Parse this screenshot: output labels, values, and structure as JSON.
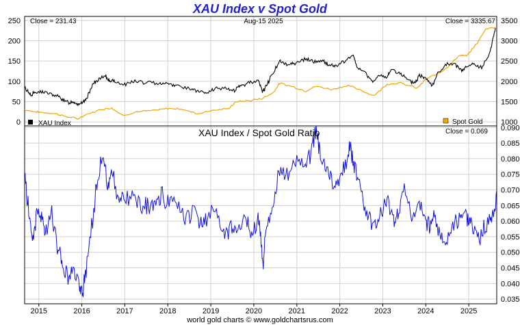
{
  "title": "XAU Index v Spot Gold",
  "footer": "world gold charts © www.goldchartsrus.com",
  "colors": {
    "xau": "#000000",
    "gold": "#f0a500",
    "ratio": "#1010e0",
    "title": "#1f1fd0"
  },
  "chart_data": [
    {
      "type": "line",
      "panel": "top",
      "title": "",
      "date_label": "Aug-15  2025",
      "close_left_label": "Close = 231.43",
      "close_right_label": "Close = 3335.67",
      "left_axis": {
        "ylim": [
          -10,
          260
        ],
        "ticks": [
          0,
          50,
          100,
          150,
          200,
          250
        ],
        "tick_labels": [
          "0",
          "50",
          "100",
          "150",
          "200",
          "250"
        ]
      },
      "right_axis": {
        "ylim": [
          900,
          3600
        ],
        "ticks": [
          1000,
          1500,
          2000,
          2500,
          3000,
          3500
        ],
        "tick_labels": [
          "1000",
          "1500",
          "2000",
          "2500",
          "3000",
          "3500"
        ]
      },
      "x_axis": {
        "xlim": [
          2014.67,
          2025.65
        ],
        "ticks": [
          2015,
          2016,
          2017,
          2018,
          2019,
          2020,
          2021,
          2022,
          2023,
          2024,
          2025
        ],
        "tick_labels": [
          "2015",
          "2016",
          "2017",
          "2018",
          "2019",
          "2020",
          "2021",
          "2022",
          "2023",
          "2024",
          "2025"
        ]
      },
      "grid": true,
      "legend": [
        {
          "name": "XAU Index",
          "position": "bottom-left"
        },
        {
          "name": "Spot Gold",
          "position": "bottom-right"
        }
      ],
      "series": [
        {
          "name": "XAU Index",
          "axis": "left",
          "x": [
            2014.67,
            2014.8,
            2014.95,
            2015.1,
            2015.3,
            2015.5,
            2015.65,
            2015.8,
            2015.9,
            2016.0,
            2016.1,
            2016.25,
            2016.4,
            2016.55,
            2016.65,
            2016.8,
            2017.0,
            2017.2,
            2017.5,
            2017.8,
            2018.0,
            2018.2,
            2018.5,
            2018.7,
            2018.9,
            2019.1,
            2019.4,
            2019.55,
            2019.7,
            2019.9,
            2020.1,
            2020.2,
            2020.25,
            2020.4,
            2020.6,
            2020.75,
            2020.9,
            2021.0,
            2021.2,
            2021.4,
            2021.6,
            2021.75,
            2021.9,
            2022.1,
            2022.3,
            2022.4,
            2022.6,
            2022.75,
            2022.9,
            2023.1,
            2023.2,
            2023.4,
            2023.6,
            2023.75,
            2023.85,
            2024.0,
            2024.15,
            2024.3,
            2024.5,
            2024.7,
            2024.85,
            2024.95,
            2025.1,
            2025.3,
            2025.5,
            2025.62
          ],
          "y": [
            85,
            68,
            72,
            75,
            67,
            60,
            48,
            50,
            45,
            45,
            55,
            92,
            105,
            112,
            102,
            98,
            92,
            100,
            96,
            96,
            95,
            90,
            82,
            75,
            70,
            82,
            80,
            78,
            88,
            98,
            102,
            76,
            80,
            112,
            150,
            140,
            145,
            145,
            155,
            148,
            150,
            140,
            138,
            148,
            165,
            135,
            120,
            100,
            112,
            110,
            130,
            120,
            100,
            96,
            114,
            110,
            90,
            123,
            142,
            140,
            125,
            135,
            142,
            132,
            175,
            231.43
          ]
        },
        {
          "name": "Spot Gold",
          "axis": "left-mapped-right",
          "x": [
            2014.67,
            2014.9,
            2015.1,
            2015.4,
            2015.6,
            2015.9,
            2016.1,
            2016.5,
            2016.7,
            2016.95,
            2017.3,
            2017.7,
            2018.0,
            2018.3,
            2018.7,
            2019.0,
            2019.4,
            2019.6,
            2019.9,
            2020.2,
            2020.45,
            2020.6,
            2020.9,
            2021.2,
            2021.45,
            2021.8,
            2022.2,
            2022.6,
            2022.8,
            2023.1,
            2023.4,
            2023.8,
            2024.0,
            2024.3,
            2024.5,
            2024.8,
            2024.95,
            2025.2,
            2025.4,
            2025.62
          ],
          "y": [
            1300,
            1250,
            1230,
            1200,
            1140,
            1070,
            1180,
            1320,
            1340,
            1160,
            1250,
            1280,
            1330,
            1320,
            1200,
            1280,
            1320,
            1500,
            1520,
            1580,
            1720,
            1950,
            1870,
            1760,
            1880,
            1800,
            1900,
            1720,
            1650,
            1930,
            1960,
            1830,
            2050,
            2200,
            2350,
            2650,
            2620,
            2950,
            3300,
            3335.67
          ]
        }
      ]
    },
    {
      "type": "line",
      "panel": "bottom",
      "title": "XAU Index  /  Spot Gold Ratio",
      "close_label": "Close = 0.069",
      "y_axis": {
        "ylim": [
          0.0335,
          0.0905
        ],
        "ticks": [
          0.035,
          0.04,
          0.045,
          0.05,
          0.055,
          0.06,
          0.065,
          0.07,
          0.075,
          0.08,
          0.085,
          0.09
        ],
        "tick_labels": [
          "0.035",
          "0.040",
          "0.045",
          "0.050",
          "0.055",
          "0.060",
          "0.065",
          "0.070",
          "0.075",
          "0.080",
          "0.085",
          "0.090"
        ]
      },
      "x_axis": {
        "xlim": [
          2014.67,
          2025.65
        ],
        "ticks": [
          2015,
          2016,
          2017,
          2018,
          2019,
          2020,
          2021,
          2022,
          2023,
          2024,
          2025
        ],
        "tick_labels": [
          "2015",
          "2016",
          "2017",
          "2018",
          "2019",
          "2020",
          "2021",
          "2022",
          "2023",
          "2024",
          "2025"
        ]
      },
      "grid": true,
      "series": [
        {
          "name": "XAU Index / Spot Gold Ratio",
          "x": [
            2014.67,
            2014.75,
            2014.85,
            2014.95,
            2015.05,
            2015.15,
            2015.3,
            2015.45,
            2015.55,
            2015.7,
            2015.8,
            2015.95,
            2016.02,
            2016.1,
            2016.25,
            2016.35,
            2016.5,
            2016.6,
            2016.7,
            2016.85,
            2017.0,
            2017.2,
            2017.4,
            2017.55,
            2017.7,
            2017.85,
            2018.0,
            2018.2,
            2018.4,
            2018.6,
            2018.75,
            2018.9,
            2019.1,
            2019.3,
            2019.45,
            2019.6,
            2019.8,
            2019.95,
            2020.1,
            2020.17,
            2020.22,
            2020.3,
            2020.45,
            2020.6,
            2020.8,
            2021.0,
            2021.2,
            2021.35,
            2021.45,
            2021.55,
            2021.7,
            2021.85,
            2022.0,
            2022.15,
            2022.25,
            2022.35,
            2022.5,
            2022.65,
            2022.8,
            2022.95,
            2023.1,
            2023.25,
            2023.35,
            2023.5,
            2023.7,
            2023.85,
            2024.0,
            2024.1,
            2024.2,
            2024.35,
            2024.5,
            2024.65,
            2024.8,
            2024.95,
            2025.05,
            2025.2,
            2025.35,
            2025.5,
            2025.6,
            2025.65
          ],
          "y": [
            0.075,
            0.065,
            0.054,
            0.063,
            0.063,
            0.055,
            0.062,
            0.05,
            0.046,
            0.041,
            0.045,
            0.04,
            0.036,
            0.044,
            0.06,
            0.073,
            0.082,
            0.07,
            0.076,
            0.066,
            0.067,
            0.068,
            0.064,
            0.066,
            0.064,
            0.068,
            0.066,
            0.067,
            0.061,
            0.064,
            0.058,
            0.06,
            0.064,
            0.055,
            0.058,
            0.057,
            0.061,
            0.056,
            0.061,
            0.053,
            0.047,
            0.057,
            0.065,
            0.077,
            0.075,
            0.08,
            0.078,
            0.083,
            0.089,
            0.081,
            0.077,
            0.072,
            0.074,
            0.078,
            0.084,
            0.077,
            0.068,
            0.062,
            0.058,
            0.063,
            0.066,
            0.06,
            0.062,
            0.071,
            0.061,
            0.066,
            0.061,
            0.058,
            0.062,
            0.055,
            0.054,
            0.059,
            0.061,
            0.062,
            0.06,
            0.055,
            0.057,
            0.061,
            0.063,
            0.069
          ]
        }
      ]
    }
  ]
}
